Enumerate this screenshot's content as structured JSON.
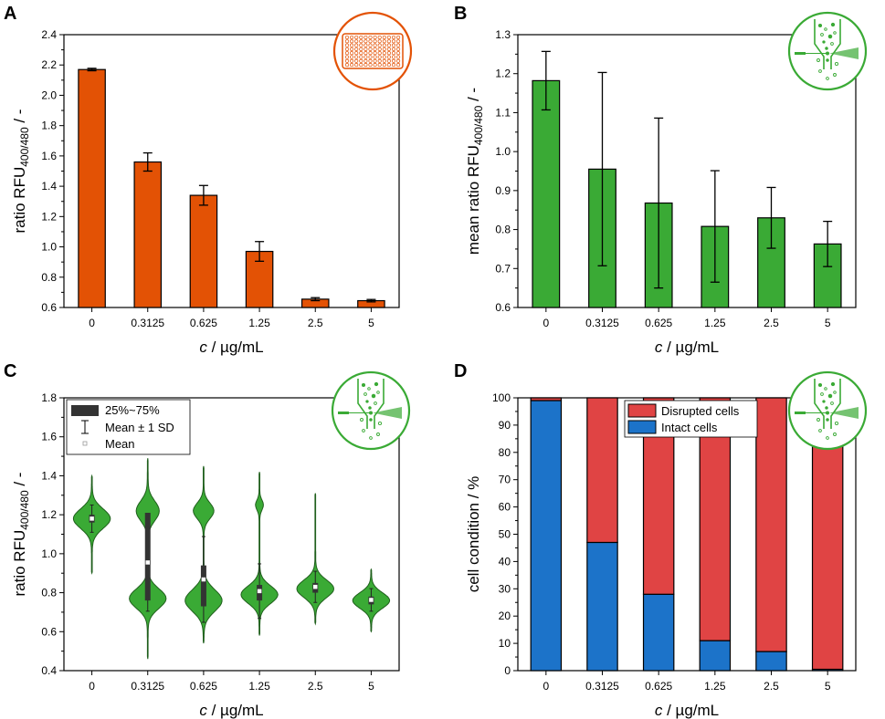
{
  "colors": {
    "orange": "#E35205",
    "green": "#3AAA35",
    "red": "#E04444",
    "blue": "#1C73C9",
    "dark": "#333333",
    "icon_green": "#3AAA35",
    "icon_orange": "#E35205"
  },
  "icons": {
    "A": "microplate-icon",
    "B": "flow-cytometer-nozzle-icon",
    "C": "flow-cytometer-nozzle-icon",
    "D": "flow-cytometer-nozzle-icon"
  },
  "chart_data": [
    {
      "panel": "A",
      "type": "bar",
      "categories": [
        "0",
        "0.3125",
        "0.625",
        "1.25",
        "2.5",
        "5"
      ],
      "values": [
        2.17,
        1.56,
        1.34,
        0.97,
        0.655,
        0.645
      ],
      "errors": [
        0.008,
        0.06,
        0.065,
        0.065,
        0.01,
        0.008
      ],
      "title": "",
      "xlabel_italic": "c",
      "xlabel_rest": " / µg/mL",
      "ylabel_main": "ratio RFU",
      "ylabel_sub": "400/480",
      "ylabel_tail": " / -",
      "ylim": [
        0.6,
        2.4
      ],
      "yticks": [
        "0.6",
        "0.8",
        "1.0",
        "1.2",
        "1.4",
        "1.6",
        "1.8",
        "2.0",
        "2.2",
        "2.4"
      ],
      "color": "orange"
    },
    {
      "panel": "B",
      "type": "bar",
      "categories": [
        "0",
        "0.3125",
        "0.625",
        "1.25",
        "2.5",
        "5"
      ],
      "values": [
        1.182,
        0.955,
        0.868,
        0.808,
        0.83,
        0.763
      ],
      "errors": [
        0.075,
        0.248,
        0.218,
        0.143,
        0.078,
        0.058
      ],
      "title": "",
      "xlabel_italic": "c",
      "xlabel_rest": " / µg/mL",
      "ylabel_main": "mean ratio RFU",
      "ylabel_sub": "400/480",
      "ylabel_tail": " / -",
      "ylim": [
        0.6,
        1.3
      ],
      "yticks": [
        "0.6",
        "0.7",
        "0.8",
        "0.9",
        "1.0",
        "1.1",
        "1.2",
        "1.3"
      ],
      "color": "green"
    },
    {
      "panel": "C",
      "type": "violin",
      "categories": [
        "0",
        "0.3125",
        "0.625",
        "1.25",
        "2.5",
        "5"
      ],
      "ylim": [
        0.4,
        1.8
      ],
      "yticks": [
        "0.4",
        "0.6",
        "0.8",
        "1.0",
        "1.2",
        "1.4",
        "1.6",
        "1.8"
      ],
      "xlabel_italic": "c",
      "xlabel_rest": " / µg/mL",
      "ylabel_main": "ratio RFU",
      "ylabel_sub": "400/480",
      "ylabel_tail": " / -",
      "legend": [
        "25%~75%",
        "Mean ± 1 SD",
        "Mean"
      ],
      "violins": [
        {
          "min": 0.9,
          "max": 1.4,
          "modes": [
            [
              1.18,
              0.05,
              1.0
            ]
          ],
          "mean": 1.18,
          "sd": 0.07,
          "q1": 1.16,
          "q3": 1.2
        },
        {
          "min": 0.46,
          "max": 1.49,
          "modes": [
            [
              0.77,
              0.05,
              1.0
            ],
            [
              1.22,
              0.05,
              0.62
            ]
          ],
          "mean": 0.955,
          "sd": 0.25,
          "q1": 0.76,
          "q3": 1.21
        },
        {
          "min": 0.54,
          "max": 1.45,
          "modes": [
            [
              0.76,
              0.055,
              1.0
            ],
            [
              1.22,
              0.04,
              0.55
            ]
          ],
          "mean": 0.868,
          "sd": 0.22,
          "q1": 0.73,
          "q3": 0.94
        },
        {
          "min": 0.58,
          "max": 1.42,
          "modes": [
            [
              0.79,
              0.045,
              1.0
            ],
            [
              1.25,
              0.025,
              0.2
            ]
          ],
          "mean": 0.808,
          "sd": 0.14,
          "q1": 0.76,
          "q3": 0.84
        },
        {
          "min": 0.64,
          "max": 1.31,
          "modes": [
            [
              0.82,
              0.045,
              1.0
            ]
          ],
          "mean": 0.83,
          "sd": 0.08,
          "q1": 0.8,
          "q3": 0.85
        },
        {
          "min": 0.6,
          "max": 0.92,
          "modes": [
            [
              0.76,
              0.04,
              1.0
            ]
          ],
          "mean": 0.763,
          "sd": 0.058,
          "q1": 0.74,
          "q3": 0.78
        }
      ]
    },
    {
      "panel": "D",
      "type": "stacked_bar",
      "categories": [
        "0",
        "0.3125",
        "0.625",
        "1.25",
        "2.5",
        "5"
      ],
      "series": [
        {
          "name": "Intact cells",
          "color": "blue",
          "values": [
            99,
            47,
            28,
            11,
            7,
            0.5
          ]
        },
        {
          "name": "Disrupted cells",
          "color": "red",
          "values": [
            1,
            53,
            72,
            89,
            93,
            99.5
          ]
        }
      ],
      "legend_order": [
        "Disrupted cells",
        "Intact cells"
      ],
      "ylim": [
        0,
        100
      ],
      "yticks": [
        "0",
        "10",
        "20",
        "30",
        "40",
        "50",
        "60",
        "70",
        "80",
        "90",
        "100"
      ],
      "xlabel_italic": "c",
      "xlabel_rest": " / µg/mL",
      "ylabel": "cell condition / %"
    }
  ],
  "panel_labels": [
    "A",
    "B",
    "C",
    "D"
  ]
}
